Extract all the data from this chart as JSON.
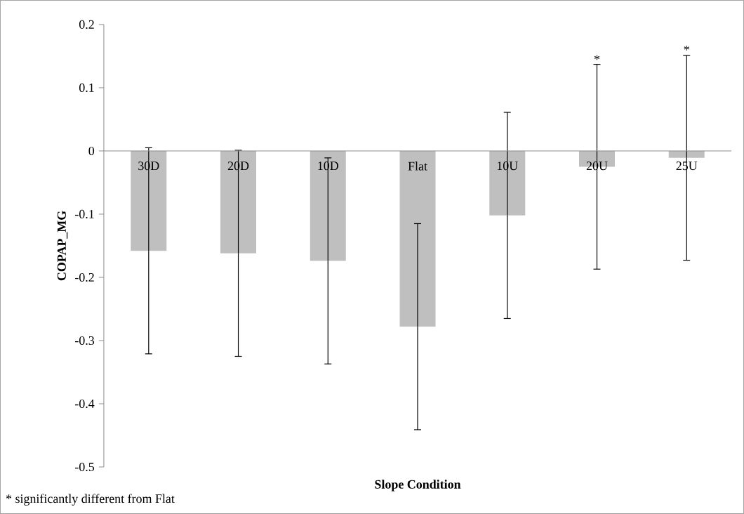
{
  "chart_data": {
    "type": "bar",
    "categories": [
      "30D",
      "20D",
      "10D",
      "Flat",
      "10U",
      "20U",
      "25U"
    ],
    "values": [
      -0.158,
      -0.162,
      -0.174,
      -0.278,
      -0.102,
      -0.025,
      -0.011
    ],
    "errors": [
      0.163,
      0.163,
      0.163,
      0.163,
      0.163,
      0.162,
      0.162
    ],
    "color": "#bfbfbf",
    "xlabel": "Slope Condition",
    "ylabel": "COPAP_MG",
    "ylim": [
      -0.5,
      0.2
    ],
    "yticks": [
      -0.5,
      -0.4,
      -0.3,
      -0.2,
      -0.1,
      0,
      0.1,
      0.2
    ],
    "annotations": [
      {
        "text": "*",
        "x": "20U",
        "y": 0.137
      },
      {
        "text": "*",
        "x": "25U",
        "y": 0.152
      },
      "* significantly different from Flat"
    ]
  }
}
